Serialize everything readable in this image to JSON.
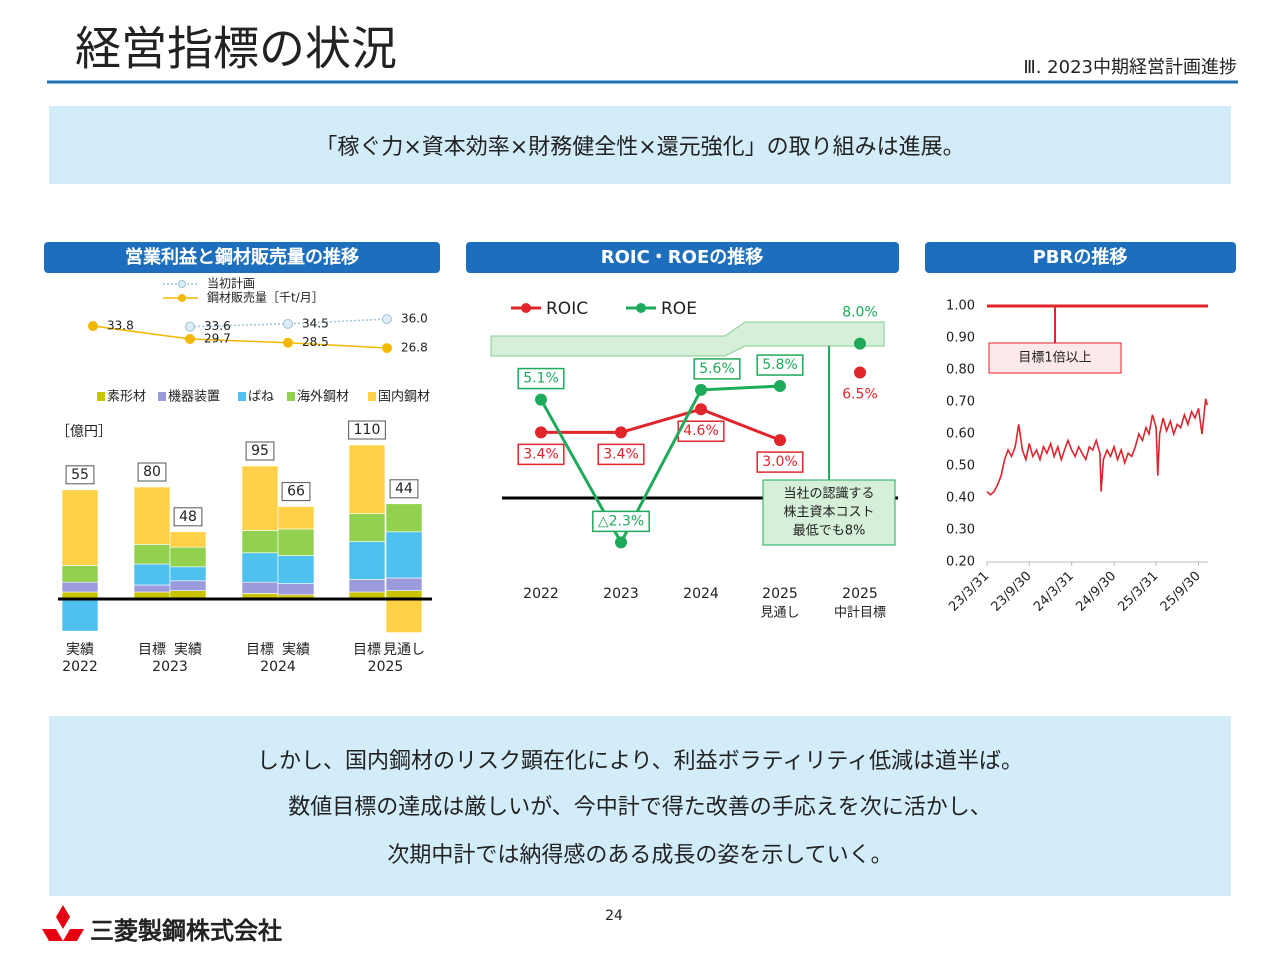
{
  "header": {
    "title": "経営指標の状況",
    "section": "Ⅲ. 2023中期経営計画進捗"
  },
  "banner": "「稼ぐ力×資本効率×財務健全性×還元強化」の取り組みは進展。",
  "chart_data": [
    {
      "type": "stacked_bar",
      "title": "営業利益と鋼材販売量の推移",
      "unit": "［億円］",
      "groups": [
        {
          "label": "2022",
          "bars": [
            "実績"
          ]
        },
        {
          "label": "2023",
          "bars": [
            "目標",
            "実績"
          ]
        },
        {
          "label": "2024",
          "bars": [
            "目標",
            "実績"
          ]
        },
        {
          "label": "2025",
          "bars": [
            "目標",
            "見通し"
          ]
        }
      ],
      "totals": [
        55,
        80,
        48,
        95,
        66,
        110,
        44
      ],
      "ylim": [
        -40,
        125
      ],
      "series": [
        {
          "name": "素形材",
          "color": "#c9c400",
          "values": [
            5,
            5,
            6,
            4,
            3,
            5,
            6
          ]
        },
        {
          "name": "機器装置",
          "color": "#9b9bdc",
          "values": [
            7,
            5,
            7,
            8,
            8,
            9,
            9
          ]
        },
        {
          "name": "ばね",
          "color": "#4fc1ef",
          "values": [
            -23,
            15,
            10,
            21,
            20,
            27,
            33
          ]
        },
        {
          "name": "海外鋼材",
          "color": "#92d050",
          "values": [
            12,
            14,
            14,
            16,
            19,
            20,
            20
          ]
        },
        {
          "name": "国内鋼材",
          "color": "#ffd147",
          "values": [
            54,
            41,
            11,
            46,
            16,
            49,
            -24
          ]
        }
      ],
      "volume": {
        "type": "line",
        "ylim": [
          20,
          40
        ],
        "series": [
          {
            "name": "当初計画",
            "color": "#9dc3d6",
            "style": "dotted",
            "values": [
              null,
              33.6,
              34.5,
              36.0
            ],
            "value_labels": [
              null,
              "33.6",
              "34.5",
              "36.0"
            ]
          },
          {
            "name": "鋼材販売量［千t/月］",
            "color": "#f5b800",
            "style": "solid",
            "values": [
              33.8,
              29.7,
              28.5,
              26.8
            ]
          }
        ]
      }
    },
    {
      "type": "line",
      "title": "ROIC・ROEの推移",
      "categories": [
        "2022",
        "2023",
        "2024",
        "2025",
        "2025"
      ],
      "category_notes": [
        null,
        null,
        null,
        "見通し",
        "中計目標"
      ],
      "ylim": [
        -4,
        10
      ],
      "series": [
        {
          "name": "ROIC",
          "color": "#e0252b",
          "values": [
            3.4,
            3.4,
            4.6,
            3.0,
            6.5
          ],
          "value_labels": [
            "3.4%",
            "3.4%",
            "4.6%",
            "3.0%",
            "6.5%"
          ]
        },
        {
          "name": "ROE",
          "color": "#1daa5a",
          "values": [
            5.1,
            -2.3,
            5.6,
            5.8,
            8.0
          ],
          "value_labels": [
            "5.1%",
            "△2.3%",
            "5.6%",
            "5.8%",
            "8.0%"
          ]
        }
      ],
      "annotation": [
        "当社の認識する",
        "株主資本コスト",
        "最低でも8%"
      ]
    },
    {
      "type": "line",
      "title": "PBRの推移",
      "color": "#d9262e",
      "x": [
        "23/3/31",
        "23/4/15",
        "23/4/30",
        "23/5/15",
        "23/5/31",
        "23/6/15",
        "23/6/30",
        "23/7/15",
        "23/7/31",
        "23/8/15",
        "23/8/31",
        "23/9/15",
        "23/9/30",
        "23/10/15",
        "23/10/31",
        "23/11/15",
        "23/11/30",
        "23/12/15",
        "23/12/31",
        "24/1/15",
        "24/1/31",
        "24/2/15",
        "24/2/29",
        "24/3/15",
        "24/3/31",
        "24/4/15",
        "24/4/30",
        "24/5/15",
        "24/5/31",
        "24/6/15",
        "24/6/30",
        "24/7/15",
        "24/7/31",
        "24/8/5",
        "24/8/15",
        "24/8/31",
        "24/9/15",
        "24/9/30",
        "24/10/15",
        "24/10/31",
        "24/11/15",
        "24/11/30",
        "24/12/15",
        "24/12/31",
        "25/1/15",
        "25/1/31",
        "25/2/15",
        "25/2/28",
        "25/3/15",
        "25/3/31",
        "25/4/7",
        "25/4/15",
        "25/4/30",
        "25/5/15",
        "25/5/31",
        "25/6/15",
        "25/6/30",
        "25/7/15",
        "25/7/31",
        "25/8/15",
        "25/8/31",
        "25/9/15",
        "25/9/30",
        "25/10/15",
        "25/10/31",
        "25/11/7"
      ],
      "values": [
        0.42,
        0.41,
        0.42,
        0.44,
        0.47,
        0.52,
        0.55,
        0.53,
        0.56,
        0.63,
        0.55,
        0.52,
        0.57,
        0.53,
        0.55,
        0.52,
        0.56,
        0.54,
        0.57,
        0.53,
        0.56,
        0.52,
        0.55,
        0.58,
        0.55,
        0.53,
        0.56,
        0.54,
        0.52,
        0.56,
        0.55,
        0.58,
        0.54,
        0.42,
        0.52,
        0.55,
        0.53,
        0.56,
        0.52,
        0.55,
        0.51,
        0.54,
        0.53,
        0.56,
        0.6,
        0.58,
        0.62,
        0.6,
        0.66,
        0.62,
        0.47,
        0.6,
        0.65,
        0.61,
        0.64,
        0.6,
        0.63,
        0.62,
        0.66,
        0.63,
        0.67,
        0.65,
        0.68,
        0.6,
        0.71,
        0.69
      ],
      "xlim": [
        "23/3/31",
        "25/11/10"
      ],
      "xticks": [
        "23/3/31",
        "23/9/30",
        "24/3/31",
        "24/9/30",
        "25/3/31",
        "25/9/30"
      ],
      "ylim": [
        0.2,
        1.0
      ],
      "yticks": [
        {
          "value": 0.2,
          "label": "0.20"
        },
        {
          "value": 0.3,
          "label": "0.30"
        },
        {
          "value": 0.4,
          "label": "0.40"
        },
        {
          "value": 0.5,
          "label": "0.50"
        },
        {
          "value": 0.6,
          "label": "0.60"
        },
        {
          "value": 0.7,
          "label": "0.70"
        },
        {
          "value": 0.8,
          "label": "0.80"
        },
        {
          "value": 0.9,
          "label": "0.90"
        },
        {
          "value": 1.0,
          "label": "1.00"
        }
      ],
      "target": {
        "value": 1,
        "label": "目標1倍以上",
        "color": "#e0252b"
      }
    }
  ],
  "footer": {
    "message": [
      "しかし、国内鋼材のリスク顕在化により、利益ボラティリティ低減は道半ば。",
      "数値目標の達成は厳しいが、今中計で得た改善の手応えを次に活かし、",
      "次期中計では納得感のある成長の姿を示していく。"
    ],
    "page": 24,
    "company": "三菱製鋼株式会社"
  }
}
